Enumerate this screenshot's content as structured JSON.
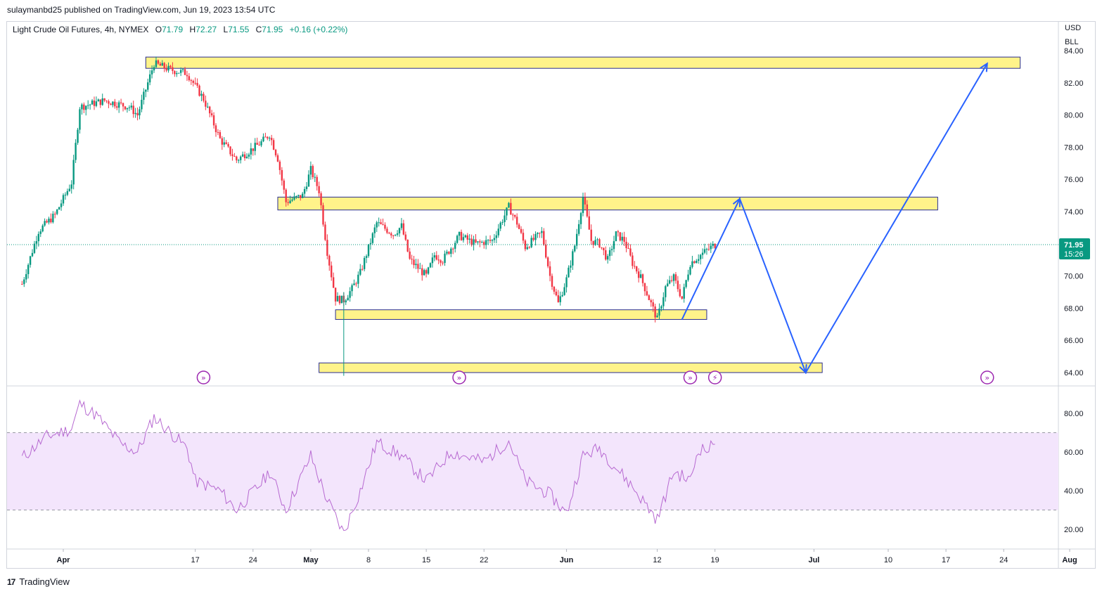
{
  "header": {
    "published_by": "sulaymanbd25 published on TradingView.com, Jun 19, 2023 13:54 UTC"
  },
  "legend": {
    "symbol": "Light Crude Oil Futures, 4h, NYMEX",
    "open_label": "O",
    "open": "71.79",
    "high_label": "H",
    "high": "72.27",
    "low_label": "L",
    "low": "71.55",
    "close_label": "C",
    "close": "71.95",
    "change": "+0.16 (+0.22%)"
  },
  "price_scale": {
    "currency": "USD",
    "unit": "BLL",
    "last_price": "71.95",
    "countdown": "15:26"
  },
  "footer": {
    "brand": "TradingView"
  },
  "colors": {
    "up": "#089981",
    "down": "#f23645",
    "zone_fill": "#fff176",
    "zone_border": "#2a2e90",
    "projection": "#2962ff",
    "rsi": "#b769d1",
    "rsi_band": "#f3e5fc",
    "last_price_badge": "#089981"
  },
  "chart_data": [
    {
      "type": "candlestick",
      "title": "Light Crude Oil Futures, 4h, NYMEX",
      "ylim": [
        63.5,
        84.5
      ],
      "y_ticks": [
        "84.00",
        "82.00",
        "80.00",
        "78.00",
        "76.00",
        "74.00",
        "72.00",
        "70.00",
        "68.00",
        "66.00",
        "64.00"
      ],
      "x_ticks": [
        "Apr",
        "17",
        "24",
        "May",
        "8",
        "15",
        "22",
        "Jun",
        "12",
        "19",
        "Jul",
        "10",
        "17",
        "24",
        "Aug"
      ],
      "price_path": [
        {
          "date": "2023-03-27",
          "price": 69.5
        },
        {
          "date": "2023-03-29",
          "price": 72.8
        },
        {
          "date": "2023-03-31",
          "price": 73.8
        },
        {
          "date": "2023-04-02",
          "price": 75.8
        },
        {
          "date": "2023-04-03",
          "price": 80.5
        },
        {
          "date": "2023-04-06",
          "price": 80.9
        },
        {
          "date": "2023-04-09",
          "price": 80.5
        },
        {
          "date": "2023-04-10",
          "price": 80.0
        },
        {
          "date": "2023-04-12",
          "price": 83.2
        },
        {
          "date": "2023-04-14",
          "price": 82.8
        },
        {
          "date": "2023-04-16",
          "price": 82.6
        },
        {
          "date": "2023-04-18",
          "price": 81.0
        },
        {
          "date": "2023-04-20",
          "price": 78.5
        },
        {
          "date": "2023-04-22",
          "price": 77.2
        },
        {
          "date": "2023-04-25",
          "price": 78.3
        },
        {
          "date": "2023-04-26",
          "price": 78.8
        },
        {
          "date": "2023-04-27",
          "price": 77.3
        },
        {
          "date": "2023-04-28",
          "price": 74.6
        },
        {
          "date": "2023-04-30",
          "price": 75.0
        },
        {
          "date": "2023-05-01",
          "price": 76.6
        },
        {
          "date": "2023-05-02",
          "price": 75.3
        },
        {
          "date": "2023-05-03",
          "price": 71.5
        },
        {
          "date": "2023-05-04",
          "price": 68.6
        },
        {
          "date": "2023-05-05",
          "price": 68.5
        },
        {
          "date": "2023-05-06",
          "price": 69.2
        },
        {
          "date": "2023-05-07",
          "price": 70.2
        },
        {
          "date": "2023-05-09",
          "price": 73.3
        },
        {
          "date": "2023-05-11",
          "price": 72.6
        },
        {
          "date": "2023-05-12",
          "price": 73.1
        },
        {
          "date": "2023-05-13",
          "price": 71.0
        },
        {
          "date": "2023-05-15",
          "price": 70.0
        },
        {
          "date": "2023-05-16",
          "price": 71.3
        },
        {
          "date": "2023-05-17",
          "price": 71.0
        },
        {
          "date": "2023-05-19",
          "price": 72.5
        },
        {
          "date": "2023-05-21",
          "price": 72.0
        },
        {
          "date": "2023-05-23",
          "price": 72.2
        },
        {
          "date": "2023-05-25",
          "price": 74.3
        },
        {
          "date": "2023-05-26",
          "price": 73.3
        },
        {
          "date": "2023-05-27",
          "price": 71.8
        },
        {
          "date": "2023-05-29",
          "price": 72.7
        },
        {
          "date": "2023-05-30",
          "price": 70.0
        },
        {
          "date": "2023-05-31",
          "price": 68.3
        },
        {
          "date": "2023-06-01",
          "price": 69.8
        },
        {
          "date": "2023-06-02",
          "price": 71.9
        },
        {
          "date": "2023-06-03",
          "price": 74.9
        },
        {
          "date": "2023-06-04",
          "price": 72.2
        },
        {
          "date": "2023-06-05",
          "price": 72.0
        },
        {
          "date": "2023-06-06",
          "price": 71.0
        },
        {
          "date": "2023-06-07",
          "price": 72.6
        },
        {
          "date": "2023-06-08",
          "price": 72.2
        },
        {
          "date": "2023-06-09",
          "price": 70.8
        },
        {
          "date": "2023-06-10",
          "price": 69.9
        },
        {
          "date": "2023-06-11",
          "price": 68.6
        },
        {
          "date": "2023-06-12",
          "price": 67.3
        },
        {
          "date": "2023-06-13",
          "price": 69.3
        },
        {
          "date": "2023-06-14",
          "price": 69.9
        },
        {
          "date": "2023-06-15",
          "price": 68.6
        },
        {
          "date": "2023-06-16",
          "price": 70.8
        },
        {
          "date": "2023-06-17",
          "price": 71.2
        },
        {
          "date": "2023-06-18",
          "price": 71.6
        },
        {
          "date": "2023-06-19",
          "price": 71.95
        }
      ],
      "horizontal_zones": [
        {
          "from": "2023-04-11",
          "to": "2023-07-26",
          "low": 82.9,
          "high": 83.6
        },
        {
          "from": "2023-04-27",
          "to": "2023-07-16",
          "low": 74.1,
          "high": 74.9
        },
        {
          "from": "2023-05-04",
          "to": "2023-06-18",
          "low": 67.3,
          "high": 67.9
        },
        {
          "from": "2023-05-02",
          "to": "2023-07-02",
          "low": 64.0,
          "high": 64.6
        }
      ],
      "projection_path": [
        {
          "date": "2023-06-15",
          "price": 67.3
        },
        {
          "date": "2023-06-22",
          "price": 74.8
        },
        {
          "date": "2023-06-30",
          "price": 64.0
        },
        {
          "date": "2023-07-22",
          "price": 83.2
        }
      ],
      "last_price": 71.95
    },
    {
      "type": "line",
      "title": "RSI",
      "ylim": [
        15,
        92
      ],
      "y_ticks": [
        "80.00",
        "60.00",
        "40.00",
        "20.00"
      ],
      "band": [
        30,
        70
      ],
      "series": [
        {
          "values": [
            {
              "date": "2023-03-27",
              "value": 57
            },
            {
              "date": "2023-03-30",
              "value": 68
            },
            {
              "date": "2023-04-02",
              "value": 72
            },
            {
              "date": "2023-04-03",
              "value": 85
            },
            {
              "date": "2023-04-05",
              "value": 79
            },
            {
              "date": "2023-04-08",
              "value": 64
            },
            {
              "date": "2023-04-10",
              "value": 60
            },
            {
              "date": "2023-04-12",
              "value": 78
            },
            {
              "date": "2023-04-14",
              "value": 70
            },
            {
              "date": "2023-04-16",
              "value": 62
            },
            {
              "date": "2023-04-17",
              "value": 45
            },
            {
              "date": "2023-04-20",
              "value": 40
            },
            {
              "date": "2023-04-22",
              "value": 30
            },
            {
              "date": "2023-04-25",
              "value": 44
            },
            {
              "date": "2023-04-26",
              "value": 50
            },
            {
              "date": "2023-04-28",
              "value": 30
            },
            {
              "date": "2023-05-01",
              "value": 58
            },
            {
              "date": "2023-05-03",
              "value": 35
            },
            {
              "date": "2023-05-05",
              "value": 18
            },
            {
              "date": "2023-05-07",
              "value": 40
            },
            {
              "date": "2023-05-09",
              "value": 65
            },
            {
              "date": "2023-05-12",
              "value": 58
            },
            {
              "date": "2023-05-15",
              "value": 45
            },
            {
              "date": "2023-05-18",
              "value": 60
            },
            {
              "date": "2023-05-22",
              "value": 55
            },
            {
              "date": "2023-05-25",
              "value": 66
            },
            {
              "date": "2023-05-27",
              "value": 45
            },
            {
              "date": "2023-05-30",
              "value": 38
            },
            {
              "date": "2023-06-01",
              "value": 28
            },
            {
              "date": "2023-06-03",
              "value": 58
            },
            {
              "date": "2023-06-05",
              "value": 62
            },
            {
              "date": "2023-06-07",
              "value": 52
            },
            {
              "date": "2023-06-09",
              "value": 42
            },
            {
              "date": "2023-06-12",
              "value": 25
            },
            {
              "date": "2023-06-14",
              "value": 50
            },
            {
              "date": "2023-06-16",
              "value": 45
            },
            {
              "date": "2023-06-17",
              "value": 62
            },
            {
              "date": "2023-06-18",
              "value": 61
            },
            {
              "date": "2023-06-19",
              "value": 64
            }
          ]
        }
      ]
    }
  ]
}
